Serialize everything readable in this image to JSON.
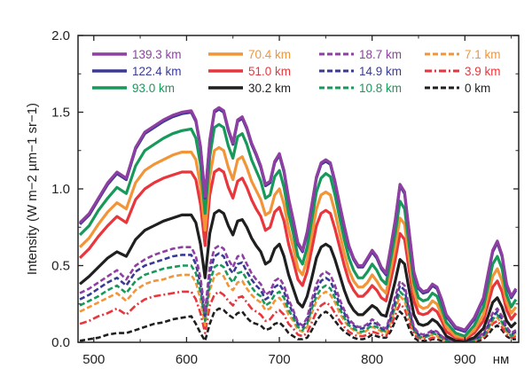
{
  "chart_data": {
    "type": "line",
    "xlabel": "нм",
    "ylabel": "Intensity (W m−2 µm−1 sr−1)",
    "xlim": [
      483,
      958
    ],
    "ylim": [
      0,
      2.0
    ],
    "x_ticks": [
      "500",
      "600",
      "700",
      "800",
      "900"
    ],
    "y_ticks": [
      "0.0",
      "0.5",
      "1.0",
      "1.5",
      "2.0"
    ],
    "grid": false,
    "legend": "top, 3 rows × 4 columns",
    "x": [
      485,
      495,
      505,
      515,
      525,
      535,
      545,
      555,
      565,
      575,
      585,
      595,
      605,
      610,
      615,
      620,
      625,
      630,
      635,
      640,
      645,
      650,
      655,
      660,
      665,
      670,
      675,
      680,
      685,
      690,
      695,
      700,
      705,
      710,
      715,
      720,
      725,
      730,
      735,
      740,
      745,
      750,
      755,
      760,
      765,
      770,
      775,
      780,
      785,
      790,
      795,
      800,
      805,
      810,
      815,
      820,
      825,
      830,
      835,
      840,
      845,
      850,
      855,
      860,
      865,
      870,
      875,
      880,
      890,
      900,
      910,
      920,
      925,
      930,
      935,
      940,
      945,
      950,
      955
    ],
    "series": [
      {
        "name": "139.3 km",
        "color": "#8e3fa1",
        "style": "solid",
        "values": [
          0.78,
          0.84,
          0.94,
          1.04,
          1.11,
          1.07,
          1.27,
          1.37,
          1.41,
          1.45,
          1.48,
          1.5,
          1.51,
          1.45,
          1.28,
          0.95,
          1.32,
          1.51,
          1.53,
          1.51,
          1.39,
          1.3,
          1.45,
          1.47,
          1.4,
          1.3,
          1.23,
          1.15,
          1.03,
          1.05,
          1.18,
          1.23,
          1.12,
          0.94,
          0.8,
          0.65,
          0.6,
          0.72,
          0.9,
          1.08,
          1.17,
          1.19,
          1.17,
          1.05,
          0.9,
          0.76,
          0.63,
          0.55,
          0.5,
          0.5,
          0.55,
          0.6,
          0.56,
          0.49,
          0.45,
          0.62,
          0.8,
          1.03,
          0.98,
          0.72,
          0.46,
          0.36,
          0.33,
          0.34,
          0.38,
          0.36,
          0.28,
          0.18,
          0.1,
          0.08,
          0.16,
          0.29,
          0.45,
          0.6,
          0.66,
          0.57,
          0.38,
          0.3,
          0.35
        ]
      },
      {
        "name": "122.4 km",
        "color": "#3a3a94",
        "style": "solid",
        "values": [
          0.77,
          0.83,
          0.93,
          1.03,
          1.1,
          1.06,
          1.26,
          1.36,
          1.4,
          1.44,
          1.47,
          1.49,
          1.5,
          1.44,
          1.27,
          0.94,
          1.31,
          1.5,
          1.52,
          1.5,
          1.38,
          1.29,
          1.44,
          1.46,
          1.39,
          1.29,
          1.22,
          1.14,
          1.02,
          1.04,
          1.17,
          1.22,
          1.11,
          0.93,
          0.79,
          0.64,
          0.59,
          0.71,
          0.89,
          1.07,
          1.16,
          1.18,
          1.16,
          1.04,
          0.89,
          0.75,
          0.62,
          0.54,
          0.49,
          0.49,
          0.54,
          0.59,
          0.55,
          0.48,
          0.44,
          0.61,
          0.79,
          1.02,
          0.97,
          0.71,
          0.45,
          0.35,
          0.32,
          0.33,
          0.37,
          0.35,
          0.27,
          0.17,
          0.09,
          0.07,
          0.15,
          0.28,
          0.44,
          0.59,
          0.65,
          0.56,
          0.37,
          0.29,
          0.34
        ]
      },
      {
        "name": "93.0 km",
        "color": "#17995a",
        "style": "solid",
        "values": [
          0.7,
          0.76,
          0.86,
          0.94,
          1.01,
          0.97,
          1.15,
          1.25,
          1.29,
          1.33,
          1.36,
          1.38,
          1.39,
          1.33,
          1.16,
          0.84,
          1.21,
          1.4,
          1.42,
          1.4,
          1.28,
          1.2,
          1.34,
          1.36,
          1.29,
          1.19,
          1.12,
          1.05,
          0.94,
          0.96,
          1.08,
          1.12,
          1.01,
          0.84,
          0.71,
          0.56,
          0.51,
          0.62,
          0.8,
          0.98,
          1.07,
          1.1,
          1.08,
          0.96,
          0.81,
          0.67,
          0.55,
          0.47,
          0.42,
          0.42,
          0.46,
          0.51,
          0.47,
          0.41,
          0.38,
          0.54,
          0.71,
          0.92,
          0.87,
          0.63,
          0.39,
          0.29,
          0.27,
          0.28,
          0.32,
          0.3,
          0.22,
          0.13,
          0.06,
          0.04,
          0.11,
          0.23,
          0.37,
          0.51,
          0.56,
          0.48,
          0.31,
          0.23,
          0.28
        ]
      },
      {
        "name": "70.4 km",
        "color": "#f29538",
        "style": "solid",
        "values": [
          0.62,
          0.68,
          0.77,
          0.85,
          0.91,
          0.87,
          1.04,
          1.12,
          1.16,
          1.19,
          1.22,
          1.24,
          1.24,
          1.19,
          1.02,
          0.73,
          1.08,
          1.25,
          1.27,
          1.25,
          1.14,
          1.06,
          1.19,
          1.21,
          1.14,
          1.05,
          0.99,
          0.93,
          0.83,
          0.85,
          0.96,
          1.0,
          0.9,
          0.74,
          0.62,
          0.48,
          0.44,
          0.54,
          0.7,
          0.87,
          0.96,
          0.98,
          0.96,
          0.85,
          0.71,
          0.58,
          0.47,
          0.4,
          0.36,
          0.36,
          0.39,
          0.44,
          0.4,
          0.35,
          0.32,
          0.47,
          0.62,
          0.81,
          0.77,
          0.55,
          0.33,
          0.24,
          0.22,
          0.23,
          0.27,
          0.25,
          0.18,
          0.1,
          0.04,
          0.03,
          0.08,
          0.18,
          0.31,
          0.43,
          0.48,
          0.4,
          0.26,
          0.19,
          0.23
        ]
      },
      {
        "name": "51.0 km",
        "color": "#e8363c",
        "style": "solid",
        "values": [
          0.55,
          0.61,
          0.69,
          0.76,
          0.82,
          0.78,
          0.93,
          1.0,
          1.04,
          1.07,
          1.09,
          1.11,
          1.11,
          1.06,
          0.9,
          0.63,
          0.96,
          1.11,
          1.13,
          1.11,
          1.01,
          0.94,
          1.05,
          1.07,
          1.01,
          0.93,
          0.87,
          0.82,
          0.73,
          0.75,
          0.85,
          0.88,
          0.79,
          0.64,
          0.53,
          0.41,
          0.37,
          0.46,
          0.61,
          0.76,
          0.84,
          0.86,
          0.84,
          0.74,
          0.62,
          0.5,
          0.4,
          0.34,
          0.3,
          0.3,
          0.33,
          0.37,
          0.34,
          0.29,
          0.27,
          0.4,
          0.54,
          0.71,
          0.67,
          0.47,
          0.27,
          0.19,
          0.18,
          0.19,
          0.22,
          0.2,
          0.14,
          0.07,
          0.03,
          0.02,
          0.06,
          0.14,
          0.25,
          0.36,
          0.4,
          0.33,
          0.21,
          0.15,
          0.19
        ]
      },
      {
        "name": "30.2 km",
        "color": "#1f1f1f",
        "style": "solid",
        "values": [
          0.38,
          0.43,
          0.49,
          0.55,
          0.59,
          0.56,
          0.67,
          0.73,
          0.76,
          0.79,
          0.81,
          0.83,
          0.83,
          0.78,
          0.64,
          0.42,
          0.71,
          0.84,
          0.86,
          0.84,
          0.76,
          0.7,
          0.79,
          0.8,
          0.75,
          0.68,
          0.63,
          0.59,
          0.51,
          0.53,
          0.61,
          0.64,
          0.56,
          0.44,
          0.35,
          0.26,
          0.23,
          0.3,
          0.42,
          0.55,
          0.62,
          0.64,
          0.62,
          0.54,
          0.44,
          0.34,
          0.26,
          0.21,
          0.18,
          0.18,
          0.21,
          0.24,
          0.22,
          0.18,
          0.17,
          0.28,
          0.4,
          0.54,
          0.51,
          0.34,
          0.18,
          0.12,
          0.11,
          0.12,
          0.15,
          0.13,
          0.09,
          0.04,
          0.01,
          0.01,
          0.03,
          0.09,
          0.17,
          0.26,
          0.29,
          0.23,
          0.14,
          0.1,
          0.13
        ]
      },
      {
        "name": "18.7 km",
        "color": "#8e3fa1",
        "style": "dash",
        "values": [
          0.32,
          0.35,
          0.39,
          0.43,
          0.47,
          0.41,
          0.5,
          0.54,
          0.57,
          0.59,
          0.61,
          0.62,
          0.62,
          0.56,
          0.42,
          0.2,
          0.5,
          0.61,
          0.63,
          0.61,
          0.54,
          0.49,
          0.56,
          0.57,
          0.51,
          0.45,
          0.41,
          0.38,
          0.31,
          0.33,
          0.4,
          0.42,
          0.37,
          0.28,
          0.21,
          0.13,
          0.11,
          0.16,
          0.28,
          0.38,
          0.44,
          0.46,
          0.44,
          0.37,
          0.28,
          0.21,
          0.15,
          0.12,
          0.1,
          0.1,
          0.12,
          0.15,
          0.13,
          0.1,
          0.09,
          0.18,
          0.3,
          0.4,
          0.37,
          0.23,
          0.1,
          0.06,
          0.05,
          0.06,
          0.08,
          0.07,
          0.04,
          0.02,
          0.01,
          0.01,
          0.02,
          0.06,
          0.12,
          0.19,
          0.22,
          0.17,
          0.1,
          0.06,
          0.08
        ]
      },
      {
        "name": "14.9 km",
        "color": "#3a3a94",
        "style": "dash",
        "values": [
          0.28,
          0.31,
          0.35,
          0.39,
          0.42,
          0.37,
          0.46,
          0.5,
          0.52,
          0.54,
          0.56,
          0.57,
          0.57,
          0.51,
          0.38,
          0.17,
          0.45,
          0.56,
          0.58,
          0.56,
          0.49,
          0.45,
          0.51,
          0.52,
          0.46,
          0.41,
          0.37,
          0.34,
          0.28,
          0.3,
          0.36,
          0.38,
          0.33,
          0.25,
          0.19,
          0.12,
          0.1,
          0.14,
          0.25,
          0.34,
          0.4,
          0.42,
          0.4,
          0.33,
          0.25,
          0.19,
          0.13,
          0.11,
          0.09,
          0.09,
          0.11,
          0.13,
          0.12,
          0.09,
          0.08,
          0.16,
          0.27,
          0.37,
          0.34,
          0.21,
          0.09,
          0.05,
          0.04,
          0.05,
          0.07,
          0.06,
          0.04,
          0.02,
          0.01,
          0.01,
          0.02,
          0.05,
          0.11,
          0.17,
          0.2,
          0.15,
          0.09,
          0.05,
          0.07
        ]
      },
      {
        "name": "10.8 km",
        "color": "#17995a",
        "style": "dash",
        "values": [
          0.24,
          0.27,
          0.3,
          0.34,
          0.37,
          0.32,
          0.4,
          0.44,
          0.46,
          0.48,
          0.49,
          0.5,
          0.5,
          0.45,
          0.33,
          0.14,
          0.39,
          0.49,
          0.51,
          0.49,
          0.43,
          0.39,
          0.45,
          0.46,
          0.41,
          0.36,
          0.32,
          0.3,
          0.24,
          0.26,
          0.31,
          0.33,
          0.29,
          0.21,
          0.16,
          0.1,
          0.08,
          0.12,
          0.22,
          0.3,
          0.35,
          0.37,
          0.35,
          0.29,
          0.22,
          0.16,
          0.11,
          0.09,
          0.07,
          0.07,
          0.09,
          0.11,
          0.1,
          0.08,
          0.07,
          0.14,
          0.24,
          0.33,
          0.3,
          0.18,
          0.08,
          0.04,
          0.03,
          0.04,
          0.06,
          0.05,
          0.03,
          0.01,
          0.01,
          0.01,
          0.01,
          0.04,
          0.09,
          0.15,
          0.18,
          0.13,
          0.08,
          0.04,
          0.06
        ]
      },
      {
        "name": "7.1 km",
        "color": "#f29538",
        "style": "dash",
        "values": [
          0.2,
          0.23,
          0.26,
          0.29,
          0.32,
          0.27,
          0.34,
          0.38,
          0.4,
          0.41,
          0.43,
          0.44,
          0.44,
          0.39,
          0.28,
          0.11,
          0.34,
          0.43,
          0.45,
          0.43,
          0.37,
          0.34,
          0.39,
          0.4,
          0.35,
          0.31,
          0.28,
          0.26,
          0.21,
          0.22,
          0.27,
          0.29,
          0.25,
          0.18,
          0.14,
          0.08,
          0.07,
          0.1,
          0.19,
          0.27,
          0.31,
          0.33,
          0.31,
          0.26,
          0.19,
          0.14,
          0.1,
          0.08,
          0.06,
          0.06,
          0.08,
          0.1,
          0.09,
          0.07,
          0.06,
          0.13,
          0.22,
          0.3,
          0.27,
          0.16,
          0.07,
          0.04,
          0.03,
          0.04,
          0.05,
          0.04,
          0.02,
          0.01,
          0.01,
          0.01,
          0.01,
          0.04,
          0.08,
          0.14,
          0.16,
          0.12,
          0.07,
          0.04,
          0.05
        ]
      },
      {
        "name": "3.9 km",
        "color": "#e8363c",
        "style": "dashdot",
        "values": [
          0.12,
          0.14,
          0.17,
          0.19,
          0.22,
          0.18,
          0.24,
          0.28,
          0.3,
          0.31,
          0.32,
          0.33,
          0.33,
          0.28,
          0.19,
          0.06,
          0.24,
          0.31,
          0.33,
          0.31,
          0.27,
          0.24,
          0.29,
          0.3,
          0.26,
          0.22,
          0.2,
          0.18,
          0.14,
          0.15,
          0.19,
          0.21,
          0.18,
          0.12,
          0.09,
          0.05,
          0.04,
          0.06,
          0.13,
          0.2,
          0.24,
          0.26,
          0.24,
          0.19,
          0.14,
          0.1,
          0.07,
          0.05,
          0.04,
          0.04,
          0.05,
          0.07,
          0.06,
          0.05,
          0.04,
          0.1,
          0.18,
          0.25,
          0.22,
          0.13,
          0.05,
          0.03,
          0.02,
          0.02,
          0.03,
          0.03,
          0.02,
          0.01,
          0.01,
          0.01,
          0.01,
          0.03,
          0.07,
          0.12,
          0.14,
          0.1,
          0.05,
          0.03,
          0.04
        ]
      },
      {
        "name": "0 km",
        "color": "#1f1f1f",
        "style": "dash",
        "values": [
          0.01,
          0.02,
          0.03,
          0.05,
          0.06,
          0.06,
          0.08,
          0.1,
          0.12,
          0.13,
          0.15,
          0.16,
          0.17,
          0.12,
          0.06,
          0.01,
          0.12,
          0.2,
          0.22,
          0.21,
          0.18,
          0.16,
          0.19,
          0.2,
          0.16,
          0.13,
          0.12,
          0.11,
          0.08,
          0.09,
          0.12,
          0.13,
          0.1,
          0.06,
          0.04,
          0.02,
          0.02,
          0.03,
          0.08,
          0.14,
          0.18,
          0.2,
          0.18,
          0.14,
          0.1,
          0.07,
          0.05,
          0.03,
          0.02,
          0.02,
          0.03,
          0.05,
          0.04,
          0.03,
          0.03,
          0.07,
          0.14,
          0.2,
          0.17,
          0.09,
          0.03,
          0.01,
          0.01,
          0.01,
          0.02,
          0.02,
          0.01,
          0.0,
          0.0,
          0.0,
          0.0,
          0.02,
          0.05,
          0.09,
          0.11,
          0.08,
          0.04,
          0.02,
          0.02
        ]
      }
    ]
  }
}
